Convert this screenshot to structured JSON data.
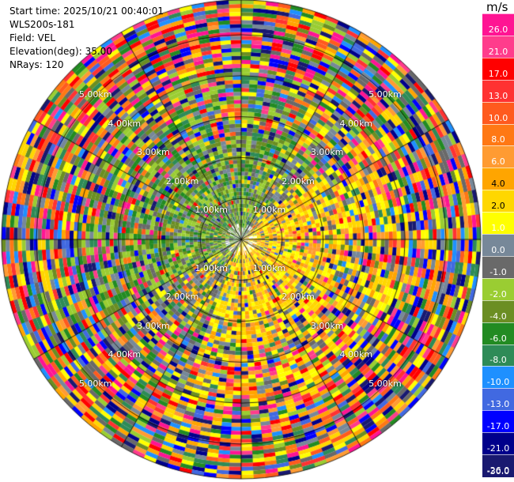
{
  "info": {
    "start_time": "Start time: 2025/10/21 00:40:01",
    "station": "WLS200s-181",
    "field": "Field: VEL",
    "elevation": "Elevation(deg): 35.00",
    "nrays": "NRays: 120"
  },
  "colorbar": {
    "unit": "m/s",
    "ticks": [
      "26.0",
      "21.0",
      "17.0",
      "13.0",
      "10.0",
      "8.0",
      "6.0",
      "4.0",
      "2.0",
      "1.0",
      "0.0",
      "-1.0",
      "-2.0",
      "-4.0",
      "-6.0",
      "-8.0",
      "-10.0",
      "-13.0",
      "-17.0",
      "-21.0",
      "-26.0",
      "-30.0"
    ],
    "colors": [
      "#ff1493",
      "#ff3c8c",
      "#ff0000",
      "#ff3232",
      "#ff5a1e",
      "#ff7814",
      "#ff9b32",
      "#ffa500",
      "#ffd700",
      "#ffff00",
      "#778899",
      "#696969",
      "#9acd32",
      "#6b8e23",
      "#228b22",
      "#2e8b57",
      "#1e90ff",
      "#4169e1",
      "#0000ff",
      "#00008b",
      "#191970"
    ]
  },
  "chart_data": {
    "type": "heatmap",
    "projection": "polar PPI",
    "field": "VEL",
    "unit": "m/s",
    "elevation_deg": 35.0,
    "nrays": 120,
    "range_rings_km": [
      1.0,
      2.0,
      3.0,
      4.0,
      5.0
    ],
    "range_ring_labels": [
      "1.00km",
      "2.00km",
      "3.00km",
      "4.00km",
      "5.00km"
    ],
    "max_range_km": 5.85,
    "grid": true,
    "legend_placement": "right",
    "value_range": [
      -30.0,
      26.0
    ],
    "near_field_pattern": {
      "east_southeast_sector": "positive 1 to 6 m/s (yellow/orange)",
      "west_north_sector": "negative -1 to -8 m/s (olive/green)",
      "beyond_4km": "noisy, all colors"
    }
  }
}
